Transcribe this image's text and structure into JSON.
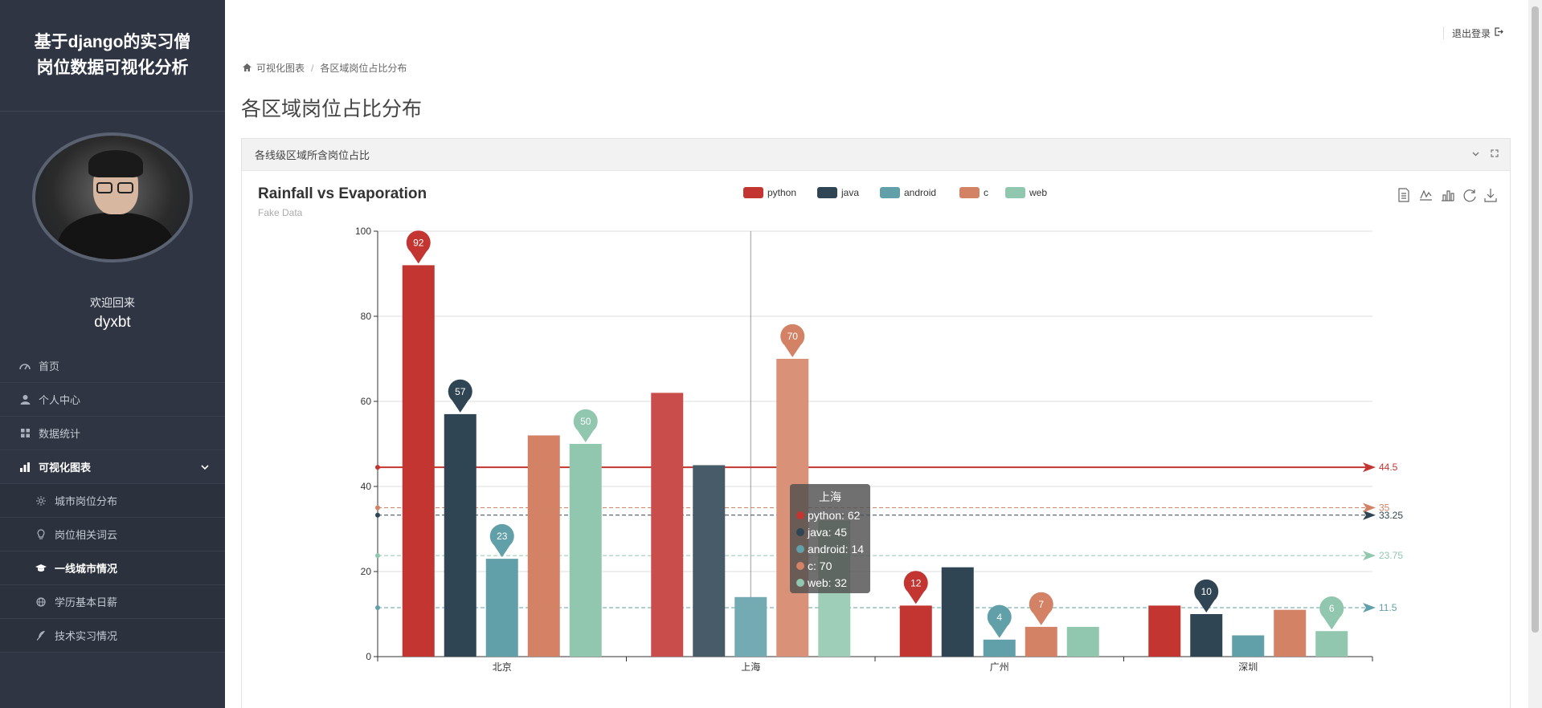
{
  "app": {
    "title_line1": "基于django的实习僧",
    "title_line2": "岗位数据可视化分析"
  },
  "user": {
    "welcome": "欢迎回来",
    "name": "dyxbt"
  },
  "menu": {
    "items": [
      {
        "label": "首页",
        "icon": "dashboard-icon"
      },
      {
        "label": "个人中心",
        "icon": "user-icon"
      },
      {
        "label": "数据统计",
        "icon": "grid-icon"
      },
      {
        "label": "可视化图表",
        "icon": "bar-chart-icon"
      }
    ],
    "submenu": [
      {
        "label": "城市岗位分布",
        "icon": "sun-icon"
      },
      {
        "label": "岗位相关词云",
        "icon": "bulb-icon"
      },
      {
        "label": "一线城市情况",
        "icon": "graduation-cap-icon"
      },
      {
        "label": "学历基本日薪",
        "icon": "globe-icon"
      },
      {
        "label": "技术实习情况",
        "icon": "feather-icon"
      }
    ]
  },
  "header": {
    "logout": "退出登录"
  },
  "breadcrumb": {
    "root": "可视化图表",
    "current": "各区域岗位占比分布"
  },
  "page": {
    "title": "各区域岗位占比分布"
  },
  "panel": {
    "title": "各线级区域所含岗位占比"
  },
  "colors": {
    "python": "#c23531",
    "java": "#2f4554",
    "android": "#61a0a8",
    "c": "#d48265",
    "web": "#91c7ae",
    "sidebar": "#2f3542"
  },
  "chart_data": {
    "type": "bar",
    "title": "Rainfall vs Evaporation",
    "subtitle": "Fake Data",
    "categories": [
      "北京",
      "上海",
      "广州",
      "深圳"
    ],
    "ylim": [
      0,
      100
    ],
    "yticks": [
      0,
      20,
      40,
      60,
      80,
      100
    ],
    "series": [
      {
        "name": "python",
        "values": [
          92,
          62,
          12,
          12
        ],
        "max_label": "92",
        "min_label": "12",
        "average": 44.5,
        "average_label": "44.5"
      },
      {
        "name": "java",
        "values": [
          57,
          45,
          21,
          10
        ],
        "max_label": "57",
        "min_label": "10",
        "average": 33.25,
        "average_label": "33.25"
      },
      {
        "name": "android",
        "values": [
          23,
          14,
          4,
          5
        ],
        "max_label": "23",
        "min_label": "4",
        "average": 11.5,
        "average_label": "11.5"
      },
      {
        "name": "c",
        "values": [
          52,
          70,
          7,
          11
        ],
        "max_label": "70",
        "min_label": "7",
        "average": 35,
        "average_label": "35"
      },
      {
        "name": "web",
        "values": [
          50,
          32,
          7,
          6
        ],
        "max_label": "50",
        "min_label": "6",
        "average": 23.75,
        "average_label": "23.75"
      }
    ],
    "legend": [
      "python",
      "java",
      "android",
      "c",
      "web"
    ],
    "tooltip": {
      "title": "上海",
      "rows": [
        "python: 62",
        "java: 45",
        "android: 14",
        "c: 70",
        "web: 32"
      ]
    }
  }
}
